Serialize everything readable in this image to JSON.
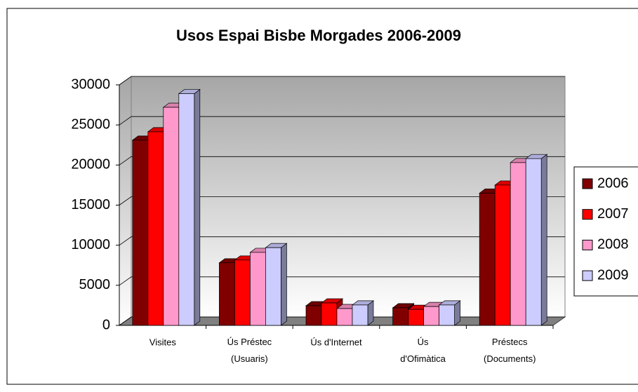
{
  "chart_data": {
    "type": "bar3d",
    "title": "Usos Espai Bisbe Morgades 2006-2009",
    "categories": [
      "Visites",
      "Ús Préstec\n(Usuaris)",
      "Ús d'Internet",
      "Ús\nd'Ofimàtica",
      "Préstecs\n(Documents)"
    ],
    "series": [
      {
        "name": "2006",
        "color": "#800000",
        "values": [
          23100,
          7800,
          2450,
          2200,
          16500
        ]
      },
      {
        "name": "2007",
        "color": "#ff0000",
        "values": [
          24150,
          8150,
          2800,
          2000,
          17500
        ]
      },
      {
        "name": "2008",
        "color": "#ff99cc",
        "values": [
          27200,
          9100,
          2100,
          2350,
          20300
        ]
      },
      {
        "name": "2009",
        "color": "#ccccff",
        "values": [
          28900,
          9700,
          2550,
          2550,
          20800
        ]
      }
    ],
    "ylim": [
      0,
      30000
    ],
    "yticks": [
      0,
      5000,
      10000,
      15000,
      20000,
      25000,
      30000
    ],
    "grid": true,
    "legend": "right"
  }
}
